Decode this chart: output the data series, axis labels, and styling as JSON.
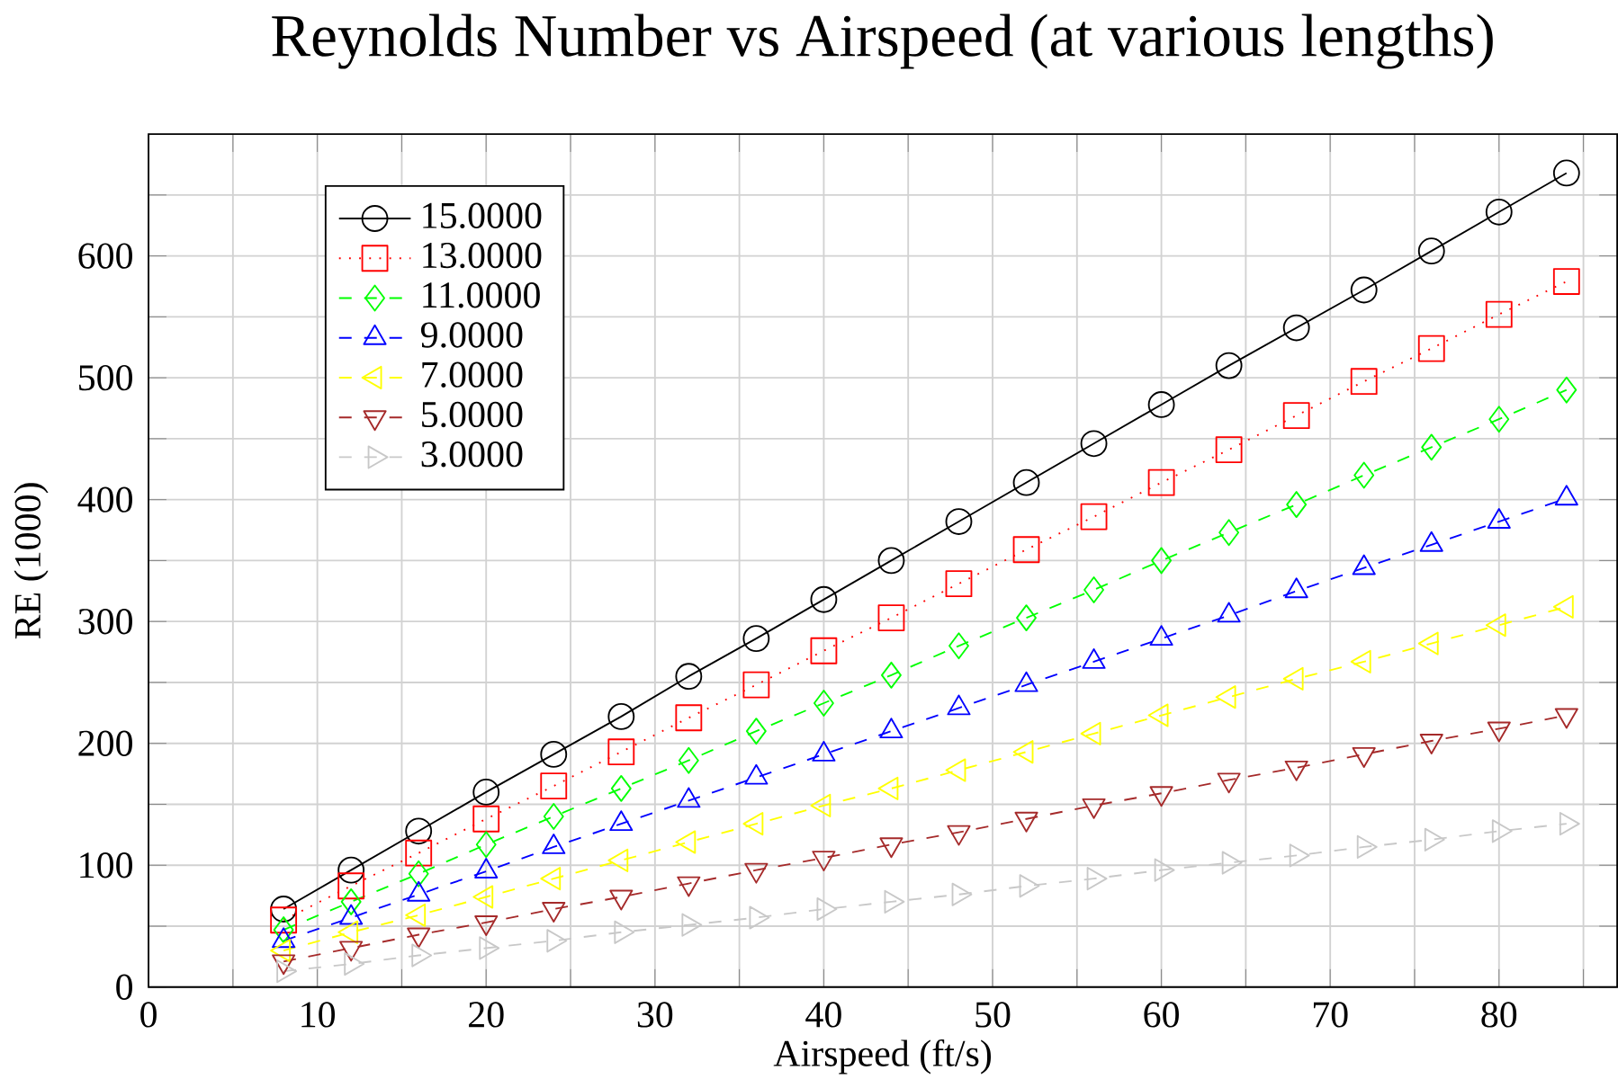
{
  "chart_data": {
    "type": "line",
    "title": "Reynolds Number vs Airspeed (at various lengths)",
    "xlabel": "Airspeed (ft/s)",
    "ylabel": "RE (1000)",
    "x": [
      8,
      12,
      16,
      20,
      24,
      28,
      32,
      36,
      40,
      44,
      48,
      52,
      56,
      60,
      64,
      68,
      72,
      76,
      80,
      84
    ],
    "xlim": [
      0,
      87
    ],
    "xticks": [
      0,
      {
        "value": 5,
        "label": null
      },
      10,
      {
        "value": 15,
        "label": null
      },
      20,
      {
        "value": 25,
        "label": null
      },
      30,
      {
        "value": 35,
        "label": null
      },
      40,
      {
        "value": 45,
        "label": null
      },
      50,
      {
        "value": 55,
        "label": null
      },
      60,
      {
        "value": 65,
        "label": null
      },
      70,
      {
        "value": 75,
        "label": null
      },
      80,
      {
        "value": 85,
        "label": null
      }
    ],
    "ylim": [
      0,
      700
    ],
    "yticks": [
      0,
      {
        "value": 50,
        "label": null
      },
      100,
      {
        "value": 150,
        "label": null
      },
      200,
      {
        "value": 250,
        "label": null
      },
      300,
      {
        "value": 350,
        "label": null
      },
      400,
      {
        "value": 450,
        "label": null
      },
      500,
      {
        "value": 550,
        "label": null
      },
      600,
      {
        "value": 650,
        "label": null
      }
    ],
    "grid": true,
    "legend": "top left",
    "series": [
      {
        "name": "15.0000",
        "color": "#000000",
        "marker": "circle",
        "line_style": "solid",
        "values": [
          64,
          96,
          128,
          160,
          191,
          222,
          255,
          286,
          318,
          350,
          382,
          414,
          446,
          478,
          510,
          541,
          572,
          604,
          636,
          668
        ]
      },
      {
        "name": "13.0000",
        "color": "#ff0000",
        "marker": "square",
        "line_style": "dotted",
        "values": [
          55,
          83,
          110,
          138,
          165,
          193,
          221,
          248,
          276,
          303,
          331,
          359,
          386,
          414,
          441,
          469,
          497,
          524,
          552,
          579
        ]
      },
      {
        "name": "11.0000",
        "color": "#00ff00",
        "marker": "diamond",
        "line_style": "dashed",
        "values": [
          47,
          70,
          93,
          117,
          140,
          163,
          186,
          210,
          233,
          256,
          280,
          303,
          326,
          350,
          373,
          396,
          420,
          443,
          466,
          490
        ]
      },
      {
        "name": "9.0000",
        "color": "#0000ff",
        "marker": "triangle",
        "line_style": "dashed",
        "values": [
          38,
          57,
          76,
          95,
          115,
          134,
          153,
          172,
          191,
          210,
          229,
          248,
          267,
          286,
          305,
          325,
          344,
          363,
          382,
          401
        ]
      },
      {
        "name": "7.0000",
        "color": "#ffff00",
        "marker": "triangle",
        "line_style": "dashed",
        "values": [
          30,
          45,
          59,
          74,
          89,
          104,
          119,
          134,
          149,
          163,
          178,
          193,
          208,
          223,
          238,
          253,
          267,
          282,
          297,
          312
        ]
      },
      {
        "name": "5.0000",
        "color": "#a52a2a",
        "marker": "triangle",
        "line_style": "dashed",
        "values": [
          21,
          32,
          43,
          53,
          64,
          74,
          85,
          96,
          106,
          117,
          127,
          138,
          149,
          159,
          170,
          180,
          191,
          202,
          212,
          223
        ]
      },
      {
        "name": "3.0000",
        "color": "#c8c8c8",
        "marker": "triangle",
        "line_style": "dashed",
        "values": [
          13,
          19,
          26,
          32,
          38,
          45,
          51,
          57,
          64,
          70,
          76,
          83,
          89,
          96,
          102,
          108,
          115,
          121,
          128,
          134
        ]
      }
    ]
  }
}
